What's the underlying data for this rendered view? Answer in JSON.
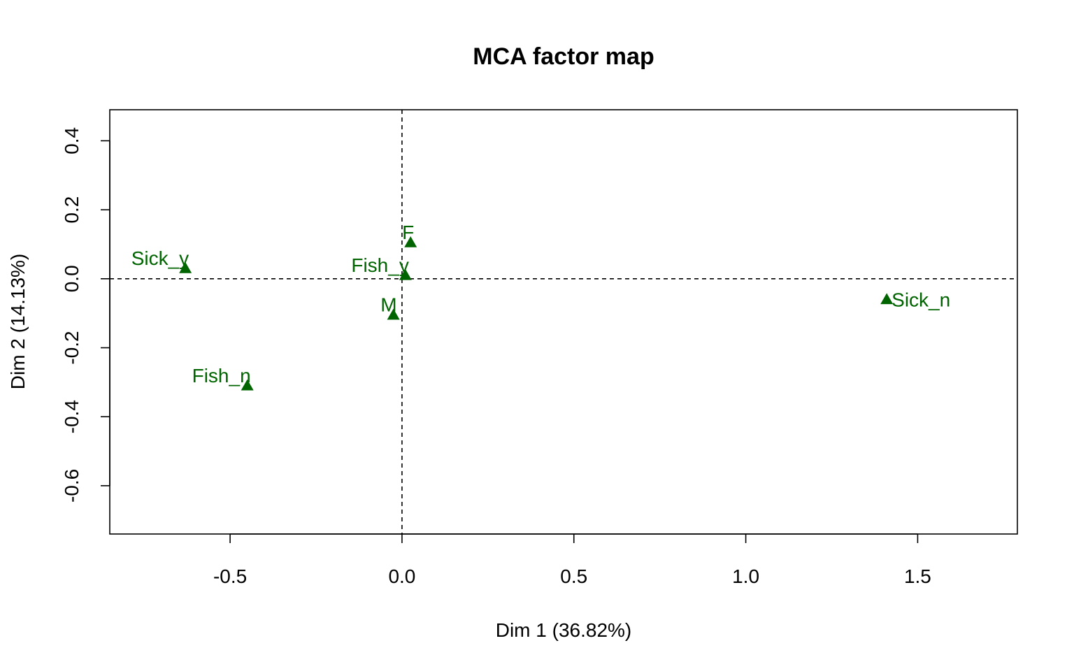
{
  "chart_data": {
    "type": "scatter",
    "title": "MCA factor map",
    "xlabel": "Dim 1 (36.82%)",
    "ylabel": "Dim 2 (14.13%)",
    "xlim": [
      -0.85,
      1.79
    ],
    "ylim": [
      -0.74,
      0.49
    ],
    "xticks": [
      -0.5,
      0.0,
      0.5,
      1.0,
      1.5
    ],
    "xtick_labels": [
      "-0.5",
      "0.0",
      "0.5",
      "1.0",
      "1.5"
    ],
    "yticks": [
      -0.6,
      -0.4,
      -0.2,
      0.0,
      0.2,
      0.4
    ],
    "ytick_labels": [
      "-0.6",
      "-0.4",
      "-0.2",
      "0.0",
      "0.2",
      "0.4"
    ],
    "reference_lines": {
      "x": 0,
      "y": 0
    },
    "marker": "triangle",
    "color": "#006400",
    "points": [
      {
        "label": "Sick_y",
        "x": -0.63,
        "y": 0.03,
        "label_side": "left"
      },
      {
        "label": "F",
        "x": 0.025,
        "y": 0.105,
        "label_side": "left"
      },
      {
        "label": "Fish_y",
        "x": 0.01,
        "y": 0.01,
        "label_side": "left"
      },
      {
        "label": "M",
        "x": -0.025,
        "y": -0.105,
        "label_side": "left"
      },
      {
        "label": "Sick_n",
        "x": 1.41,
        "y": -0.06,
        "label_side": "right"
      },
      {
        "label": "Fish_n",
        "x": -0.45,
        "y": -0.31,
        "label_side": "left"
      }
    ]
  }
}
